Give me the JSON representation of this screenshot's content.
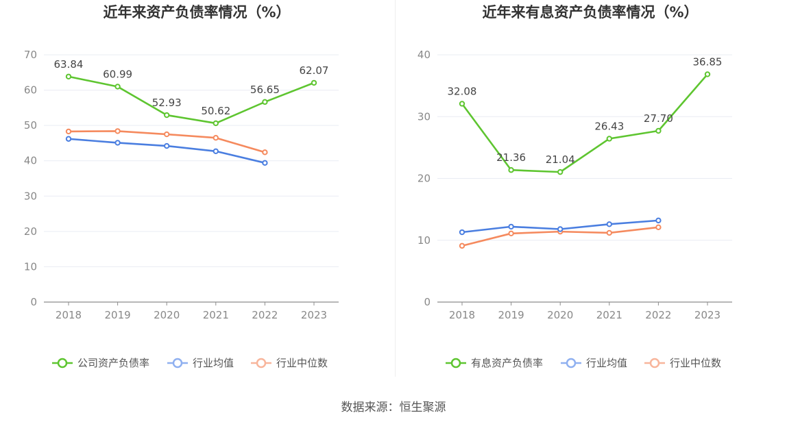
{
  "source": "数据来源：恒生聚源",
  "colors": {
    "company": "#5ec530",
    "avg": "#4a7ee0",
    "median": "#f58a5e",
    "avg_legend": "#8fb0f0",
    "median_legend": "#f8b59b"
  },
  "chart_data": [
    {
      "type": "line",
      "title": "近年来资产负债率情况（%）",
      "categories": [
        "2018",
        "2019",
        "2020",
        "2021",
        "2022",
        "2023"
      ],
      "ylim": [
        0,
        70
      ],
      "yticks": [
        "0",
        "10",
        "20",
        "30",
        "40",
        "50",
        "60",
        "70"
      ],
      "grid": true,
      "legend_position": "bottom",
      "series": [
        {
          "name": "公司资产负债率",
          "values": [
            63.84,
            60.99,
            52.93,
            50.62,
            56.65,
            62.07
          ],
          "labels": [
            "63.84",
            "60.99",
            "52.93",
            "50.62",
            "56.65",
            "62.07"
          ]
        },
        {
          "name": "行业均值",
          "values": [
            46.2,
            45.1,
            44.2,
            42.7,
            39.4,
            null
          ]
        },
        {
          "name": "行业中位数",
          "values": [
            48.3,
            48.4,
            47.5,
            46.5,
            42.4,
            null
          ]
        }
      ]
    },
    {
      "type": "line",
      "title": "近年来有息资产负债率情况（%）",
      "categories": [
        "2018",
        "2019",
        "2020",
        "2021",
        "2022",
        "2023"
      ],
      "ylim": [
        0,
        40
      ],
      "yticks": [
        "0",
        "10",
        "20",
        "30",
        "40"
      ],
      "grid": true,
      "legend_position": "bottom",
      "series": [
        {
          "name": "有息资产负债率",
          "values": [
            32.08,
            21.36,
            21.04,
            26.43,
            27.7,
            36.85
          ],
          "labels": [
            "32.08",
            "21.36",
            "21.04",
            "26.43",
            "27.70",
            "36.85"
          ]
        },
        {
          "name": "行业均值",
          "values": [
            11.3,
            12.2,
            11.8,
            12.6,
            13.2,
            null
          ]
        },
        {
          "name": "行业中位数",
          "values": [
            9.1,
            11.1,
            11.4,
            11.2,
            12.1,
            null
          ]
        }
      ]
    }
  ]
}
